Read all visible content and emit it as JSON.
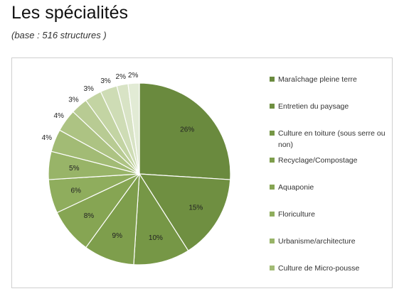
{
  "header": {
    "title": "Les spécialités",
    "subtitle": "(base : 516 structures )"
  },
  "chart_data": {
    "type": "pie",
    "title": "",
    "slices": [
      {
        "label": "Maraîchage pleine terre",
        "value": 26,
        "display": "26%",
        "color": "#6a8a3e"
      },
      {
        "label": "Entretien du paysage",
        "value": 15,
        "display": "15%",
        "color": "#6f8f41"
      },
      {
        "label": "Culture en toiture (sous serre ou non)",
        "value": 10,
        "display": "10%",
        "color": "#769746"
      },
      {
        "label": "Recyclage/Compostage",
        "value": 9,
        "display": "9%",
        "color": "#7e9e4c"
      },
      {
        "label": "Aquaponie",
        "value": 8,
        "display": "8%",
        "color": "#86a553"
      },
      {
        "label": "Floriculture",
        "value": 6,
        "display": "6%",
        "color": "#8fad5d"
      },
      {
        "label": "Urbanisme/architecture",
        "value": 5,
        "display": "5%",
        "color": "#98b468"
      },
      {
        "label": "Culture de Micro-pousse",
        "value": 4,
        "display": "4%",
        "color": "#a2bb75"
      },
      {
        "label": "",
        "value": 4,
        "display": "4%",
        "color": "#adc383"
      },
      {
        "label": "",
        "value": 3,
        "display": "3%",
        "color": "#b8cb93"
      },
      {
        "label": "",
        "value": 3,
        "display": "3%",
        "color": "#c3d4a3"
      },
      {
        "label": "",
        "value": 3,
        "display": "3%",
        "color": "#cedcb5"
      },
      {
        "label": "",
        "value": 2,
        "display": "2%",
        "color": "#d8e3c5"
      },
      {
        "label": "",
        "value": 2,
        "display": "2%",
        "color": "#e2ebd5"
      }
    ],
    "legend": {
      "position": "right",
      "entries": [
        "Maraîchage pleine terre",
        "Entretien du paysage",
        "Culture en toiture (sous serre ou non)",
        "Recyclage/Compostage",
        "Aquaponie",
        "Floriculture",
        "Urbanisme/architecture",
        "Culture de Micro-pousse"
      ]
    }
  }
}
